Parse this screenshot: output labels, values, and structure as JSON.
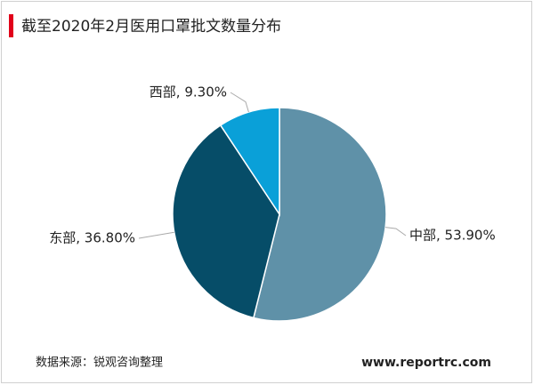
{
  "chart_data": {
    "type": "pie",
    "title": "截至2020年2月医用口罩批文数量分布",
    "values": [
      53.9,
      36.8,
      9.3
    ],
    "value_labels": [
      "中部, 53.90%",
      "东部, 36.80%",
      "西部, 9.30%"
    ],
    "colors": [
      "#5f91a8",
      "#064d68",
      "#0aa0d8"
    ],
    "source": "数据来源：锐观咨询整理",
    "website": "www.reportrc.com"
  }
}
